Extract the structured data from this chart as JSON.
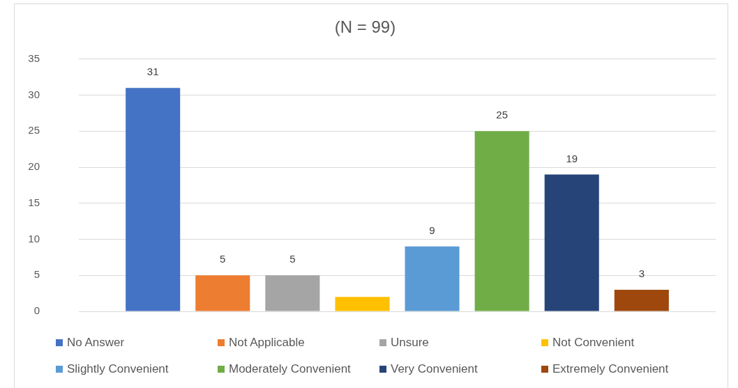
{
  "chart_data": {
    "type": "bar",
    "title": "(N = 99)",
    "categories": [
      null
    ],
    "series": [
      {
        "name": "No Answer",
        "color": "#4472c4",
        "values": [
          31
        ],
        "value_labels": [
          "31"
        ]
      },
      {
        "name": "Not Applicable",
        "color": "#ed7d31",
        "values": [
          5
        ],
        "value_labels": [
          "5"
        ]
      },
      {
        "name": "Unsure",
        "color": "#a5a5a5",
        "values": [
          5
        ],
        "value_labels": [
          "5"
        ]
      },
      {
        "name": "Not Convenient",
        "color": "#ffc000",
        "values": [
          2
        ],
        "value_labels": [
          null
        ]
      },
      {
        "name": "Slightly Convenient",
        "color": "#5b9bd5",
        "values": [
          9
        ],
        "value_labels": [
          "9"
        ]
      },
      {
        "name": "Moderately Convenient",
        "color": "#70ad47",
        "values": [
          25
        ],
        "value_labels": [
          "25"
        ]
      },
      {
        "name": "Very Convenient",
        "color": "#264478",
        "values": [
          19
        ],
        "value_labels": [
          "19"
        ]
      },
      {
        "name": "Extremely Convenient",
        "color": "#9e480e",
        "values": [
          3
        ],
        "value_labels": [
          "3"
        ]
      }
    ],
    "ylim": [
      0,
      35
    ],
    "yticks": [
      0,
      5,
      10,
      15,
      20,
      25,
      30,
      35
    ],
    "grid": "y",
    "legend": "bottom",
    "tick_labels": "y"
  }
}
